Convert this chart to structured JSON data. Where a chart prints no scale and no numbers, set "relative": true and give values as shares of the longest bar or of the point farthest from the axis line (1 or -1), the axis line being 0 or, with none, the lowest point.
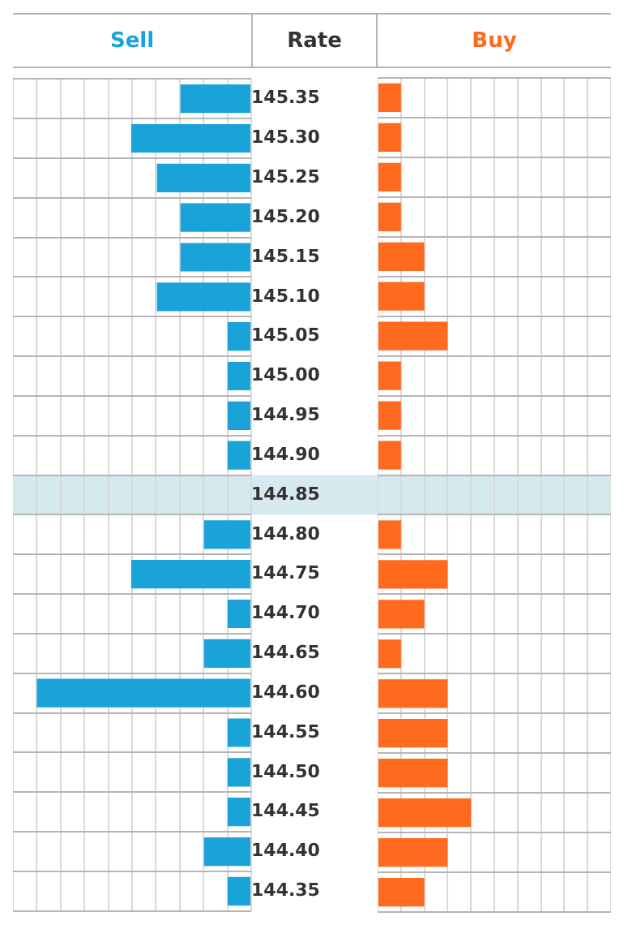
{
  "chart_data": [
    {
      "type": "bar",
      "orientation": "horizontal",
      "relative": true,
      "ylabel": "Rate",
      "grid": true,
      "categories": [
        "145.35",
        "145.30",
        "145.25",
        "145.20",
        "145.15",
        "145.10",
        "145.05",
        "145.00",
        "144.95",
        "144.90",
        "144.85",
        "144.80",
        "144.75",
        "144.70",
        "144.65",
        "144.60",
        "144.55",
        "144.50",
        "144.45",
        "144.40",
        "144.35"
      ],
      "series": [
        {
          "name": "Sell",
          "color": "#1aa3d9",
          "values": [
            0.33,
            0.56,
            0.44,
            0.33,
            0.33,
            0.44,
            0.11,
            0.11,
            0.11,
            0.11,
            null,
            0.22,
            0.56,
            0.11,
            0.22,
            1,
            0.11,
            0.11,
            0.11,
            0.22,
            0.11
          ]
        }
      ],
      "bands": [
        {
          "axis": "y",
          "from": "144.85",
          "to": "144.85",
          "color": "#d6e9ee"
        }
      ]
    },
    {
      "type": "bar",
      "orientation": "horizontal",
      "relative": true,
      "grid": true,
      "tick_labels": false,
      "categories": [
        "145.35",
        "145.30",
        "145.25",
        "145.20",
        "145.15",
        "145.10",
        "145.05",
        "145.00",
        "144.95",
        "144.90",
        "144.85",
        "144.80",
        "144.75",
        "144.70",
        "144.65",
        "144.60",
        "144.55",
        "144.50",
        "144.45",
        "144.40",
        "144.35"
      ],
      "series": [
        {
          "name": "Buy",
          "color": "#ff6a1f",
          "values": [
            0.25,
            0.25,
            0.25,
            0.25,
            0.5,
            0.5,
            0.75,
            0.25,
            0.25,
            0.25,
            null,
            0.25,
            0.75,
            0.5,
            0.25,
            0.75,
            0.75,
            0.75,
            1,
            0.75,
            0.5
          ]
        }
      ],
      "bands": [
        {
          "axis": "y",
          "from": "144.85",
          "to": "144.85",
          "color": "#d6e9ee"
        }
      ]
    }
  ]
}
